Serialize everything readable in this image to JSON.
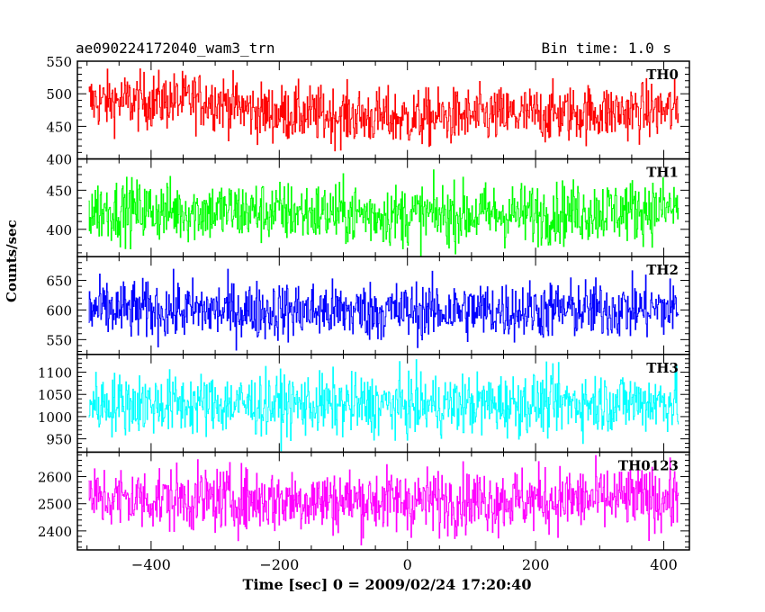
{
  "chart_data": {
    "type": "line",
    "title": "ae090224172040_wam3_trn",
    "bin_time": "Bin time: 1.0 s",
    "xlabel": "Time [sec] 0 = 2009/02/24 17:20:40",
    "ylabel": "Counts/sec",
    "xlim": [
      -515,
      440
    ],
    "x_ticks": [
      -400,
      -200,
      0,
      200,
      400
    ],
    "x_start": -497,
    "x_end": 423,
    "x_step": 1,
    "grid": false,
    "panels": [
      {
        "name": "TH0",
        "color": "#ff0000",
        "ylim": [
          400,
          550
        ],
        "y_ticks": [
          400,
          450,
          500,
          550
        ],
        "mean": [
          [
            -497,
            488
          ],
          [
            -300,
            490
          ],
          [
            -235,
            472
          ],
          [
            0,
            462
          ],
          [
            423,
            475
          ]
        ],
        "noise": 22
      },
      {
        "name": "TH1",
        "color": "#00ff00",
        "ylim": [
          365,
          490
        ],
        "y_ticks": [
          400,
          450
        ],
        "mean": [
          [
            -497,
            425
          ],
          [
            -200,
            422
          ],
          [
            0,
            418
          ],
          [
            200,
            420
          ],
          [
            423,
            427
          ]
        ],
        "noise": 20
      },
      {
        "name": "TH2",
        "color": "#0000ff",
        "ylim": [
          525,
          690
        ],
        "y_ticks": [
          550,
          600,
          650
        ],
        "mean": [
          [
            -497,
            600
          ],
          [
            0,
            598
          ],
          [
            423,
            602
          ]
        ],
        "noise": 25
      },
      {
        "name": "TH3",
        "color": "#00ffff",
        "ylim": [
          920,
          1140
        ],
        "y_ticks": [
          950,
          1000,
          1050,
          1100
        ],
        "mean": [
          [
            -497,
            1030
          ],
          [
            0,
            1025
          ],
          [
            423,
            1035
          ]
        ],
        "noise": 35
      },
      {
        "name": "TH0123",
        "color": "#ff00ff",
        "ylim": [
          2330,
          2690
        ],
        "y_ticks": [
          2400,
          2500,
          2600
        ],
        "mean": [
          [
            -497,
            2520
          ],
          [
            0,
            2510
          ],
          [
            423,
            2520
          ]
        ],
        "noise": 60
      }
    ]
  }
}
